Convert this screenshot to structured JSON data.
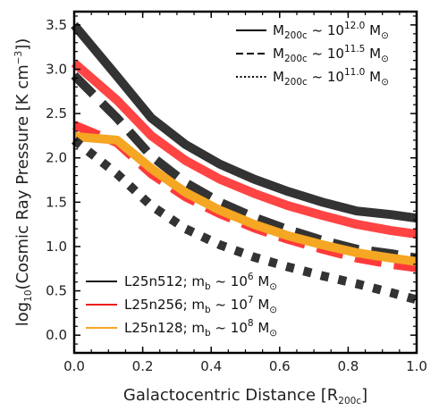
{
  "chart_data": {
    "type": "line",
    "xlabel_text": "Galactocentric Distance [R",
    "xlabel_sub": "200c",
    "xlabel_end": "]",
    "ylabel_pre": "log",
    "ylabel_sub": "10",
    "ylabel_mid": "(Cosmic Ray Pressure [K cm",
    "ylabel_sup": "−3",
    "ylabel_end": "])",
    "xlim": [
      0.0,
      1.0
    ],
    "ylim": [
      -0.2,
      3.65
    ],
    "xticks": [
      0.0,
      0.2,
      0.4,
      0.6,
      0.8,
      1.0
    ],
    "xtick_labels": [
      "0.0",
      "0.2",
      "0.4",
      "0.6",
      "0.8",
      "1.0"
    ],
    "yticks": [
      0.0,
      0.5,
      1.0,
      1.5,
      2.0,
      2.5,
      3.0,
      3.5
    ],
    "ytick_labels": [
      "0.0",
      "0.5",
      "1.0",
      "1.5",
      "2.0",
      "2.5",
      "3.0",
      "3.5"
    ],
    "mass_legend": [
      {
        "style": "solid",
        "pre": "M",
        "sub": "200c",
        "mid": " ~ 10",
        "sup": "12.0",
        "post": " M",
        "post_sub": "⊙"
      },
      {
        "style": "dashed",
        "pre": "M",
        "sub": "200c",
        "mid": " ~ 10",
        "sup": "11.5",
        "post": " M",
        "post_sub": "⊙"
      },
      {
        "style": "dotted",
        "pre": "M",
        "sub": "200c",
        "mid": " ~ 10",
        "sup": "11.0",
        "post": " M",
        "post_sub": "⊙"
      }
    ],
    "resolution_legend": [
      {
        "color": "#111111",
        "pre": "L25n512; m",
        "sub": "b",
        "mid": " ~ 10",
        "sup": "6",
        "post": " M",
        "post_sub": "⊙"
      },
      {
        "color": "#ee1c1c",
        "pre": "L25n256; m",
        "sub": "b",
        "mid": " ~ 10",
        "sup": "7",
        "post": " M",
        "post_sub": "⊙"
      },
      {
        "color": "#f5a623",
        "pre": "L25n128; m",
        "sub": "b",
        "mid": " ~ 10",
        "sup": "8",
        "post": " M",
        "post_sub": "⊙"
      }
    ],
    "series": [
      {
        "resolution": "L25n512",
        "mass": "12.0",
        "style": "solid",
        "color": "#333333",
        "x": [
          0.0,
          0.125,
          0.225,
          0.325,
          0.425,
          0.525,
          0.625,
          0.725,
          0.825,
          0.925,
          1.0
        ],
        "y": [
          3.5,
          2.92,
          2.45,
          2.15,
          1.93,
          1.76,
          1.62,
          1.5,
          1.4,
          1.36,
          1.32
        ]
      },
      {
        "resolution": "L25n256",
        "mass": "12.0",
        "style": "solid",
        "color": "#ff3a3a",
        "x": [
          0.0,
          0.125,
          0.225,
          0.325,
          0.425,
          0.525,
          0.625,
          0.725,
          0.825,
          0.925,
          1.0
        ],
        "y": [
          3.07,
          2.65,
          2.25,
          1.97,
          1.76,
          1.6,
          1.46,
          1.35,
          1.25,
          1.18,
          1.14
        ]
      },
      {
        "resolution": "L25n512",
        "mass": "11.5",
        "style": "dashed",
        "color": "#333333",
        "x": [
          0.0,
          0.125,
          0.225,
          0.325,
          0.425,
          0.525,
          0.625,
          0.725,
          0.825,
          0.925,
          1.0
        ],
        "y": [
          2.93,
          2.45,
          2.02,
          1.72,
          1.5,
          1.33,
          1.19,
          1.07,
          0.97,
          0.92,
          0.87
        ]
      },
      {
        "resolution": "L25n256",
        "mass": "11.5",
        "style": "dashed",
        "color": "#ff3a3a",
        "x": [
          0.0,
          0.125,
          0.225,
          0.325,
          0.425,
          0.525,
          0.625,
          0.725,
          0.825,
          0.925,
          1.0
        ],
        "y": [
          2.37,
          2.17,
          1.82,
          1.56,
          1.37,
          1.21,
          1.08,
          0.97,
          0.87,
          0.8,
          0.76
        ]
      },
      {
        "resolution": "L25n128",
        "mass": "11.5",
        "style": "solid",
        "color": "#f5a623",
        "x": [
          0.0,
          0.125,
          0.225,
          0.325,
          0.425,
          0.525,
          0.625,
          0.725,
          0.825,
          0.925,
          1.0
        ],
        "y": [
          2.24,
          2.2,
          1.88,
          1.61,
          1.41,
          1.25,
          1.12,
          1.02,
          0.93,
          0.87,
          0.83
        ]
      },
      {
        "resolution": "L25n512",
        "mass": "11.0",
        "style": "dotted",
        "color": "#333333",
        "x": [
          0.0,
          0.125,
          0.225,
          0.325,
          0.425,
          0.525,
          0.625,
          0.725,
          0.825,
          0.925,
          1.0
        ],
        "y": [
          2.2,
          1.82,
          1.46,
          1.2,
          1.02,
          0.88,
          0.77,
          0.67,
          0.58,
          0.48,
          0.4
        ]
      }
    ]
  }
}
